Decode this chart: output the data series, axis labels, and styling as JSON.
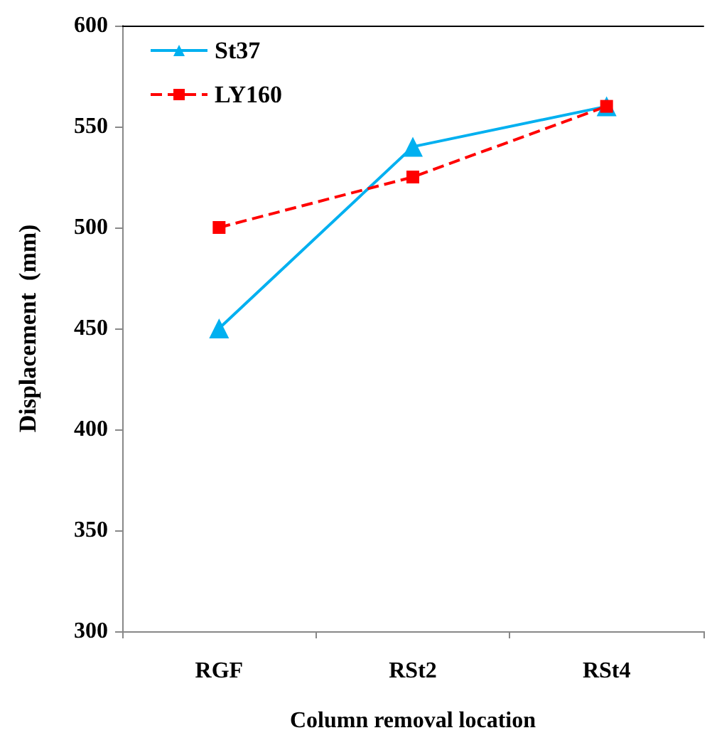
{
  "chart_data": {
    "type": "line",
    "xlabel": "Column removal location",
    "ylabel": "Displacement  (mm)",
    "categories": [
      "RGF",
      "RSt2",
      "RSt4"
    ],
    "series": [
      {
        "name": "St37",
        "color": "#00b0f0",
        "values": [
          450,
          540,
          560
        ],
        "marker": "triangle",
        "line_style": "solid"
      },
      {
        "name": "LY160",
        "color": "#ff0000",
        "values": [
          500,
          525,
          560
        ],
        "marker": "square",
        "line_style": "dashed"
      }
    ],
    "ylim": [
      300,
      600
    ],
    "yticks": [
      300,
      350,
      400,
      450,
      500,
      550,
      600
    ],
    "grid": false,
    "legend": "top left"
  }
}
